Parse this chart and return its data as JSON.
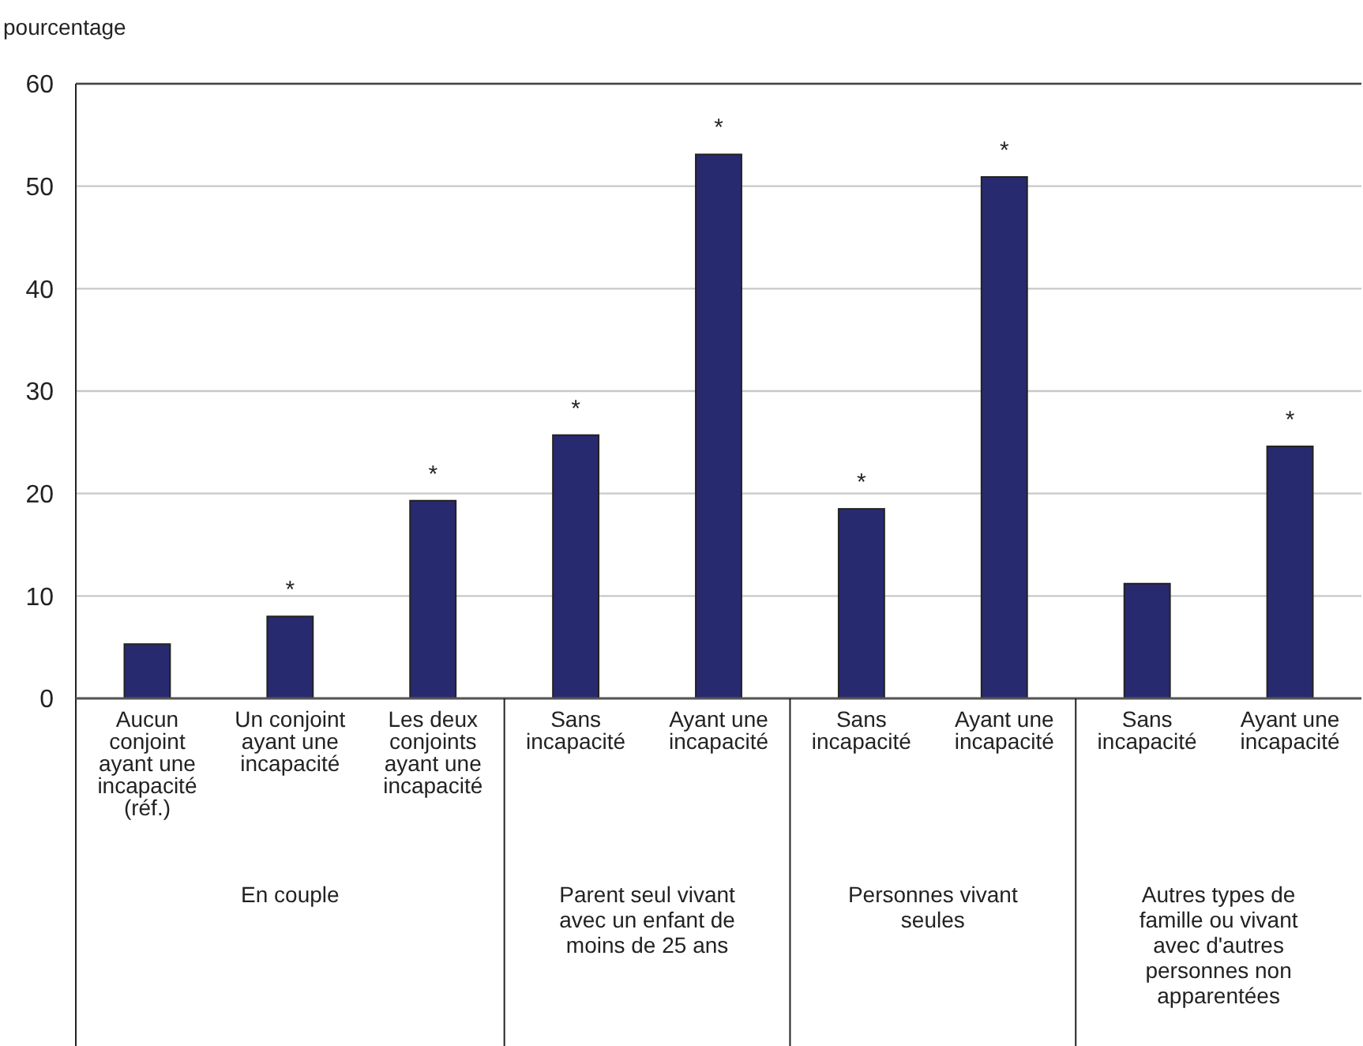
{
  "chart_data": {
    "type": "bar",
    "ylabel": "pourcentage",
    "categories": [
      "Aucun conjoint ayant une incapacité (réf.)",
      "Un conjoint ayant une incapacité",
      "Les deux conjoints ayant une incapacité",
      "Sans incapacité",
      "Ayant une incapacité",
      "Sans incapacité",
      "Ayant une incapacité",
      "Sans incapacité",
      "Ayant une incapacité"
    ],
    "values": [
      5.3,
      8.0,
      19.3,
      25.7,
      53.1,
      18.5,
      50.9,
      11.2,
      24.6
    ],
    "value_labels": [
      null,
      "*",
      "*",
      "*",
      "*",
      "*",
      "*",
      null,
      "*"
    ],
    "color": "#282a70",
    "ylim": [
      0,
      60
    ],
    "yticks": [
      0,
      10,
      20,
      30,
      40,
      50,
      60
    ],
    "grid": "y",
    "annotations": [
      "En couple",
      "Parent seul vivant avec un enfant de moins de 25 ans",
      "Personnes vivant seules",
      "Autres types de famille ou vivant avec d'autres personnes non apparentées"
    ]
  }
}
